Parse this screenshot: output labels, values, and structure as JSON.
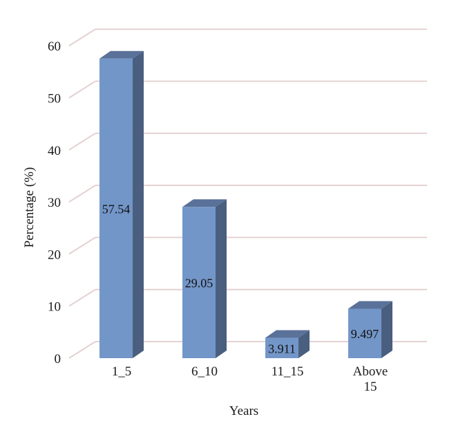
{
  "chart_data": {
    "type": "bar",
    "title": "",
    "xlabel": "Years",
    "ylabel": "Percentage (%)",
    "categories": [
      "1_5",
      "6_10",
      "11_15",
      "Above 15"
    ],
    "category_lines": [
      [
        "1_5"
      ],
      [
        "6_10"
      ],
      [
        "11_15"
      ],
      [
        "Above",
        "15"
      ]
    ],
    "values": [
      57.54,
      29.05,
      3.911,
      9.497
    ],
    "data_labels": [
      "57.54",
      "29.05",
      "3.911",
      "9.497"
    ],
    "ylim": [
      0,
      60
    ],
    "yticks": [
      0,
      10,
      20,
      30,
      40,
      50,
      60
    ],
    "grid": true,
    "legend": "none",
    "colors": {
      "bar_front": "#7396c8",
      "bar_side": "#4a5f7f",
      "bar_top": "#5a7199",
      "gridline": "#e3d1d1",
      "wall_edge": "#d9cfcf"
    }
  }
}
